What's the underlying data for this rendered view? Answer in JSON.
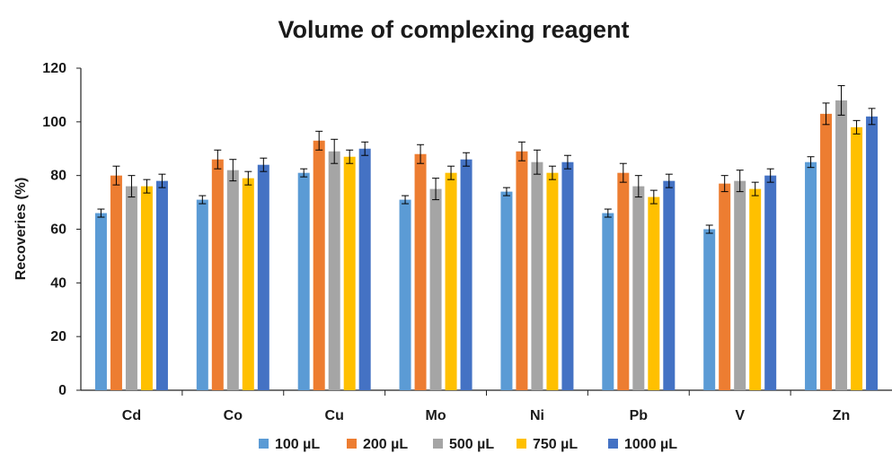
{
  "chart_data": {
    "type": "bar",
    "title": "Volume of complexing reagent",
    "xlabel": "",
    "ylabel": "Recoveries (%)",
    "ylim": [
      0,
      120
    ],
    "yticks": [
      0,
      20,
      40,
      60,
      80,
      100,
      120
    ],
    "grid": false,
    "legend_position": "bottom",
    "categories": [
      "Cd",
      "Co",
      "Cu",
      "Mo",
      "Ni",
      "Pb",
      "V",
      "Zn"
    ],
    "series": [
      {
        "name": "100 µL",
        "color": "#5B9BD5",
        "values": [
          66,
          71,
          81,
          71,
          74,
          66,
          60,
          85
        ],
        "errors": [
          1.5,
          1.5,
          1.5,
          1.5,
          1.5,
          1.5,
          1.5,
          2
        ]
      },
      {
        "name": "200 µL",
        "color": "#ED7D31",
        "values": [
          80,
          86,
          93,
          88,
          89,
          81,
          77,
          103
        ],
        "errors": [
          3.5,
          3.5,
          3.5,
          3.5,
          3.5,
          3.5,
          3,
          4
        ]
      },
      {
        "name": "500 µL",
        "color": "#A5A5A5",
        "values": [
          76,
          82,
          89,
          75,
          85,
          76,
          78,
          108
        ],
        "errors": [
          4,
          4,
          4.5,
          4,
          4.5,
          4,
          4,
          5.5
        ]
      },
      {
        "name": "750 µL",
        "color": "#FFC000",
        "values": [
          76,
          79,
          87,
          81,
          81,
          72,
          75,
          98
        ],
        "errors": [
          2.5,
          2.5,
          2.5,
          2.5,
          2.5,
          2.5,
          2.5,
          2.5
        ]
      },
      {
        "name": "1000 µL",
        "color": "#4472C4",
        "values": [
          78,
          84,
          90,
          86,
          85,
          78,
          80,
          102
        ],
        "errors": [
          2.5,
          2.5,
          2.5,
          2.5,
          2.5,
          2.5,
          2.5,
          3
        ]
      }
    ]
  }
}
